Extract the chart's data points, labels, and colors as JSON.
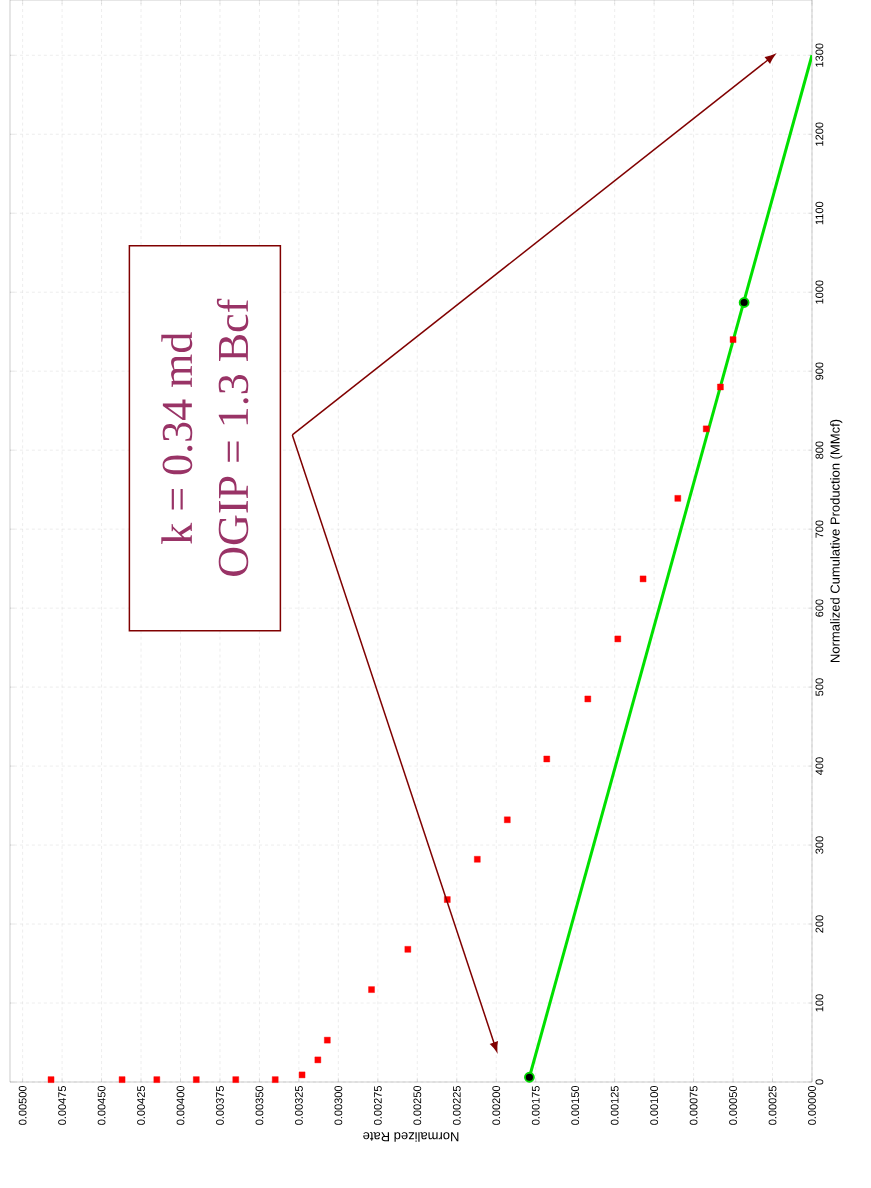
{
  "chart_data": {
    "type": "scatter",
    "xlabel": "Normalized Rate",
    "ylabel": "Normalized Cumulative Production (MMcf)",
    "ylim": [
      0,
      1370
    ],
    "xlim": [
      0.00508,
      0
    ],
    "yticks": [
      0,
      100,
      200,
      300,
      400,
      500,
      600,
      700,
      800,
      900,
      1000,
      1100,
      1200,
      1300
    ],
    "xticks": [
      {
        "value": 0.005,
        "label": "0.00500"
      },
      {
        "value": 0.00475,
        "label": "0.00475"
      },
      {
        "value": 0.0045,
        "label": "0.00450"
      },
      {
        "value": 0.00425,
        "label": "0.00425"
      },
      {
        "value": 0.004,
        "label": "0.00400"
      },
      {
        "value": 0.00375,
        "label": "0.00375"
      },
      {
        "value": 0.0035,
        "label": "0.00350"
      },
      {
        "value": 0.00325,
        "label": "0.00325"
      },
      {
        "value": 0.003,
        "label": "0.00300"
      },
      {
        "value": 0.00275,
        "label": "0.00275"
      },
      {
        "value": 0.0025,
        "label": "0.00250"
      },
      {
        "value": 0.00225,
        "label": "0.00225"
      },
      {
        "value": 0.002,
        "label": "0.00200"
      },
      {
        "value": 0.00175,
        "label": "0.00175"
      },
      {
        "value": 0.0015,
        "label": "0.00150"
      },
      {
        "value": 0.00125,
        "label": "0.00125"
      },
      {
        "value": 0.001,
        "label": "0.00100"
      },
      {
        "value": 0.00075,
        "label": "0.00075"
      },
      {
        "value": 0.0005,
        "label": "0.00050"
      },
      {
        "value": 0.00025,
        "label": "0.00025"
      },
      {
        "value": 0,
        "label": "0.00000"
      }
    ],
    "grid": true,
    "series": [
      {
        "color": "#ff0000",
        "marker": "square",
        "values": [
          3,
          3,
          3,
          3,
          3,
          3,
          9,
          28,
          53,
          117,
          168,
          231,
          282,
          332,
          409,
          485,
          561,
          637,
          739,
          827,
          880,
          940
        ],
        "x": [
          0.00482,
          0.00437,
          0.00415,
          0.0039,
          0.00365,
          0.0034,
          0.00323,
          0.00313,
          0.00307,
          0.00279,
          0.00256,
          0.00231,
          0.00212,
          0.00193,
          0.00168,
          0.00142,
          0.00123,
          0.00107,
          0.00085,
          0.00067,
          0.00058,
          0.0005
        ]
      },
      {
        "type": "line",
        "color": "#00e000",
        "marker": "none",
        "values": [
          6,
          1300
        ],
        "x": [
          0.00179,
          0
        ]
      },
      {
        "color": "#000000",
        "marker": "circle",
        "values": [
          6,
          987
        ],
        "x": [
          0.00179,
          0.00043
        ]
      }
    ],
    "annotations": [
      "k = 0.34 md",
      "OGIP = 1.3 Bcf"
    ]
  }
}
